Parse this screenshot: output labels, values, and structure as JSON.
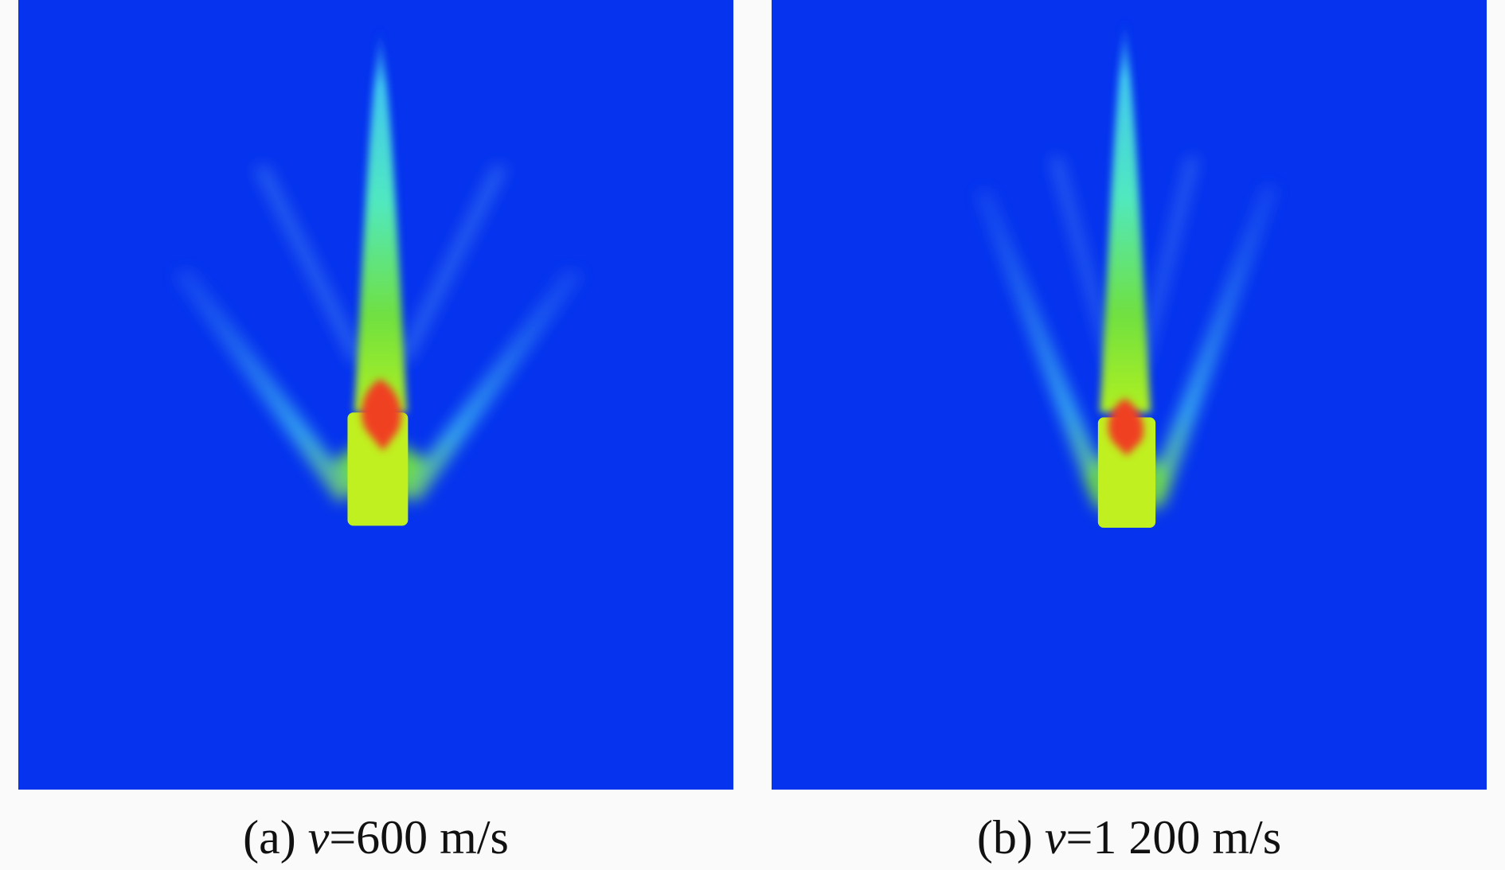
{
  "panels": [
    {
      "label": "(a)",
      "variable": "v",
      "value": "=600 m/s"
    },
    {
      "label": "(b)",
      "variable": "v",
      "value": "=1 200 m/s"
    }
  ]
}
